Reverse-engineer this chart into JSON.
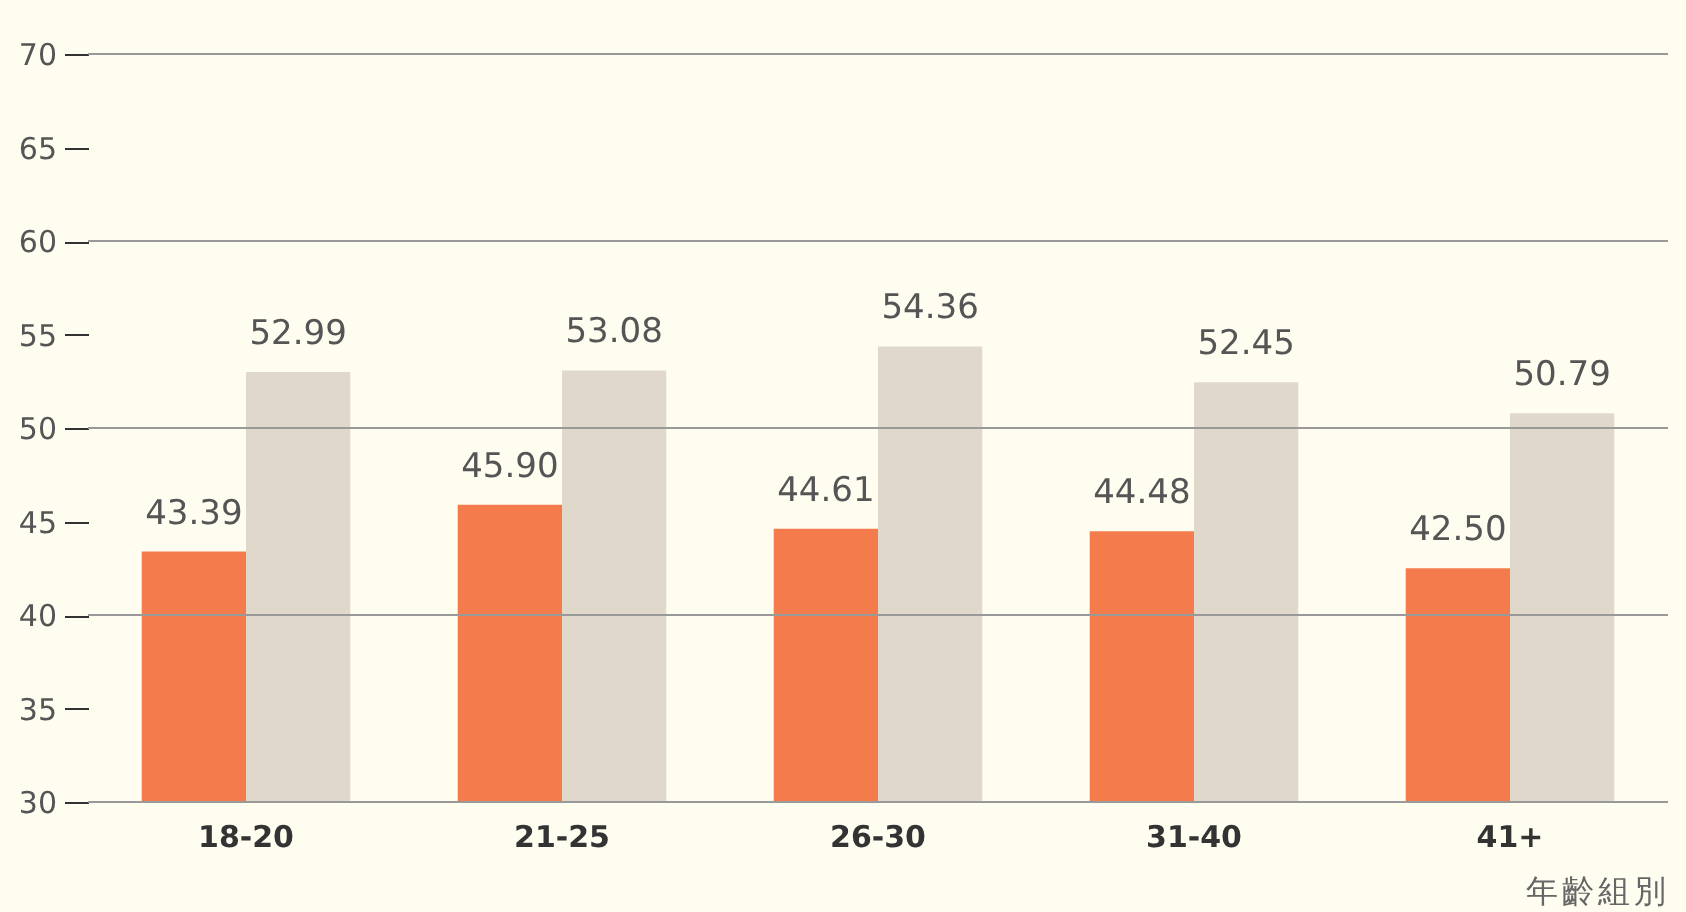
{
  "chart_data": {
    "type": "bar",
    "xlabel": "年齡組別",
    "categories": [
      "18-20",
      "21-25",
      "26-30",
      "31-40",
      "41+"
    ],
    "series": [
      {
        "color": "#f47c4c",
        "values": [
          43.39,
          45.9,
          44.61,
          44.48,
          42.5
        ],
        "value_labels": [
          "43.39",
          "45.90",
          "44.61",
          "44.48",
          "42.50"
        ]
      },
      {
        "color": "#e0d9cb",
        "values": [
          52.99,
          53.08,
          54.36,
          52.45,
          50.79
        ],
        "value_labels": [
          "52.99",
          "53.08",
          "54.36",
          "52.45",
          "50.79"
        ]
      }
    ],
    "ylim": [
      30,
      70
    ],
    "yticks": [
      30,
      35,
      40,
      45,
      50,
      55,
      60,
      65,
      70
    ],
    "grid": "y",
    "legend": false
  }
}
